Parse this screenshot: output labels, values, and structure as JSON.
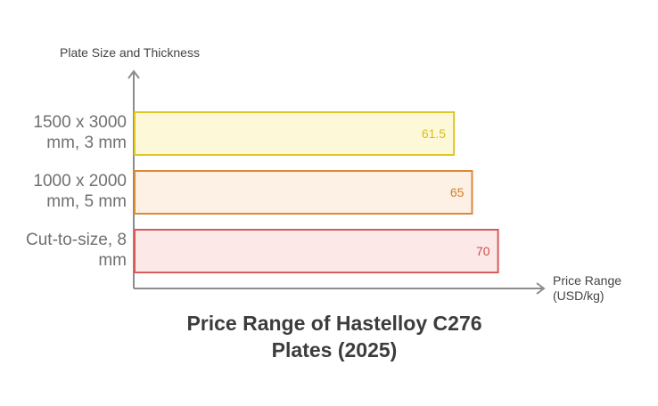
{
  "chart_data": {
    "type": "bar",
    "orientation": "horizontal",
    "title_lines": [
      "Price Range of Hastelloy C276",
      "Plates (2025)"
    ],
    "ylabel": "Plate Size and Thickness",
    "xlabel_lines": [
      "Price Range",
      "(USD/kg)"
    ],
    "categories": [
      {
        "lines": [
          "1500 x 3000",
          "mm, 3 mm"
        ]
      },
      {
        "lines": [
          "1000 x 2000",
          "mm, 5 mm"
        ]
      },
      {
        "lines": [
          "Cut-to-size, 8",
          "mm"
        ]
      }
    ],
    "values": [
      61.5,
      65,
      70
    ],
    "value_labels": [
      "61.5",
      "65",
      "70"
    ],
    "xlim": [
      0,
      79
    ],
    "bar_styles": [
      {
        "fill": "#fdf9d8",
        "stroke": "#e0c628",
        "label": "#d8bd1e"
      },
      {
        "fill": "#fdf0e4",
        "stroke": "#d98b3a",
        "label": "#d27f2a"
      },
      {
        "fill": "#fde8e8",
        "stroke": "#d65a5a",
        "label": "#cf4d4d"
      }
    ],
    "grid": false,
    "legend": "none"
  }
}
